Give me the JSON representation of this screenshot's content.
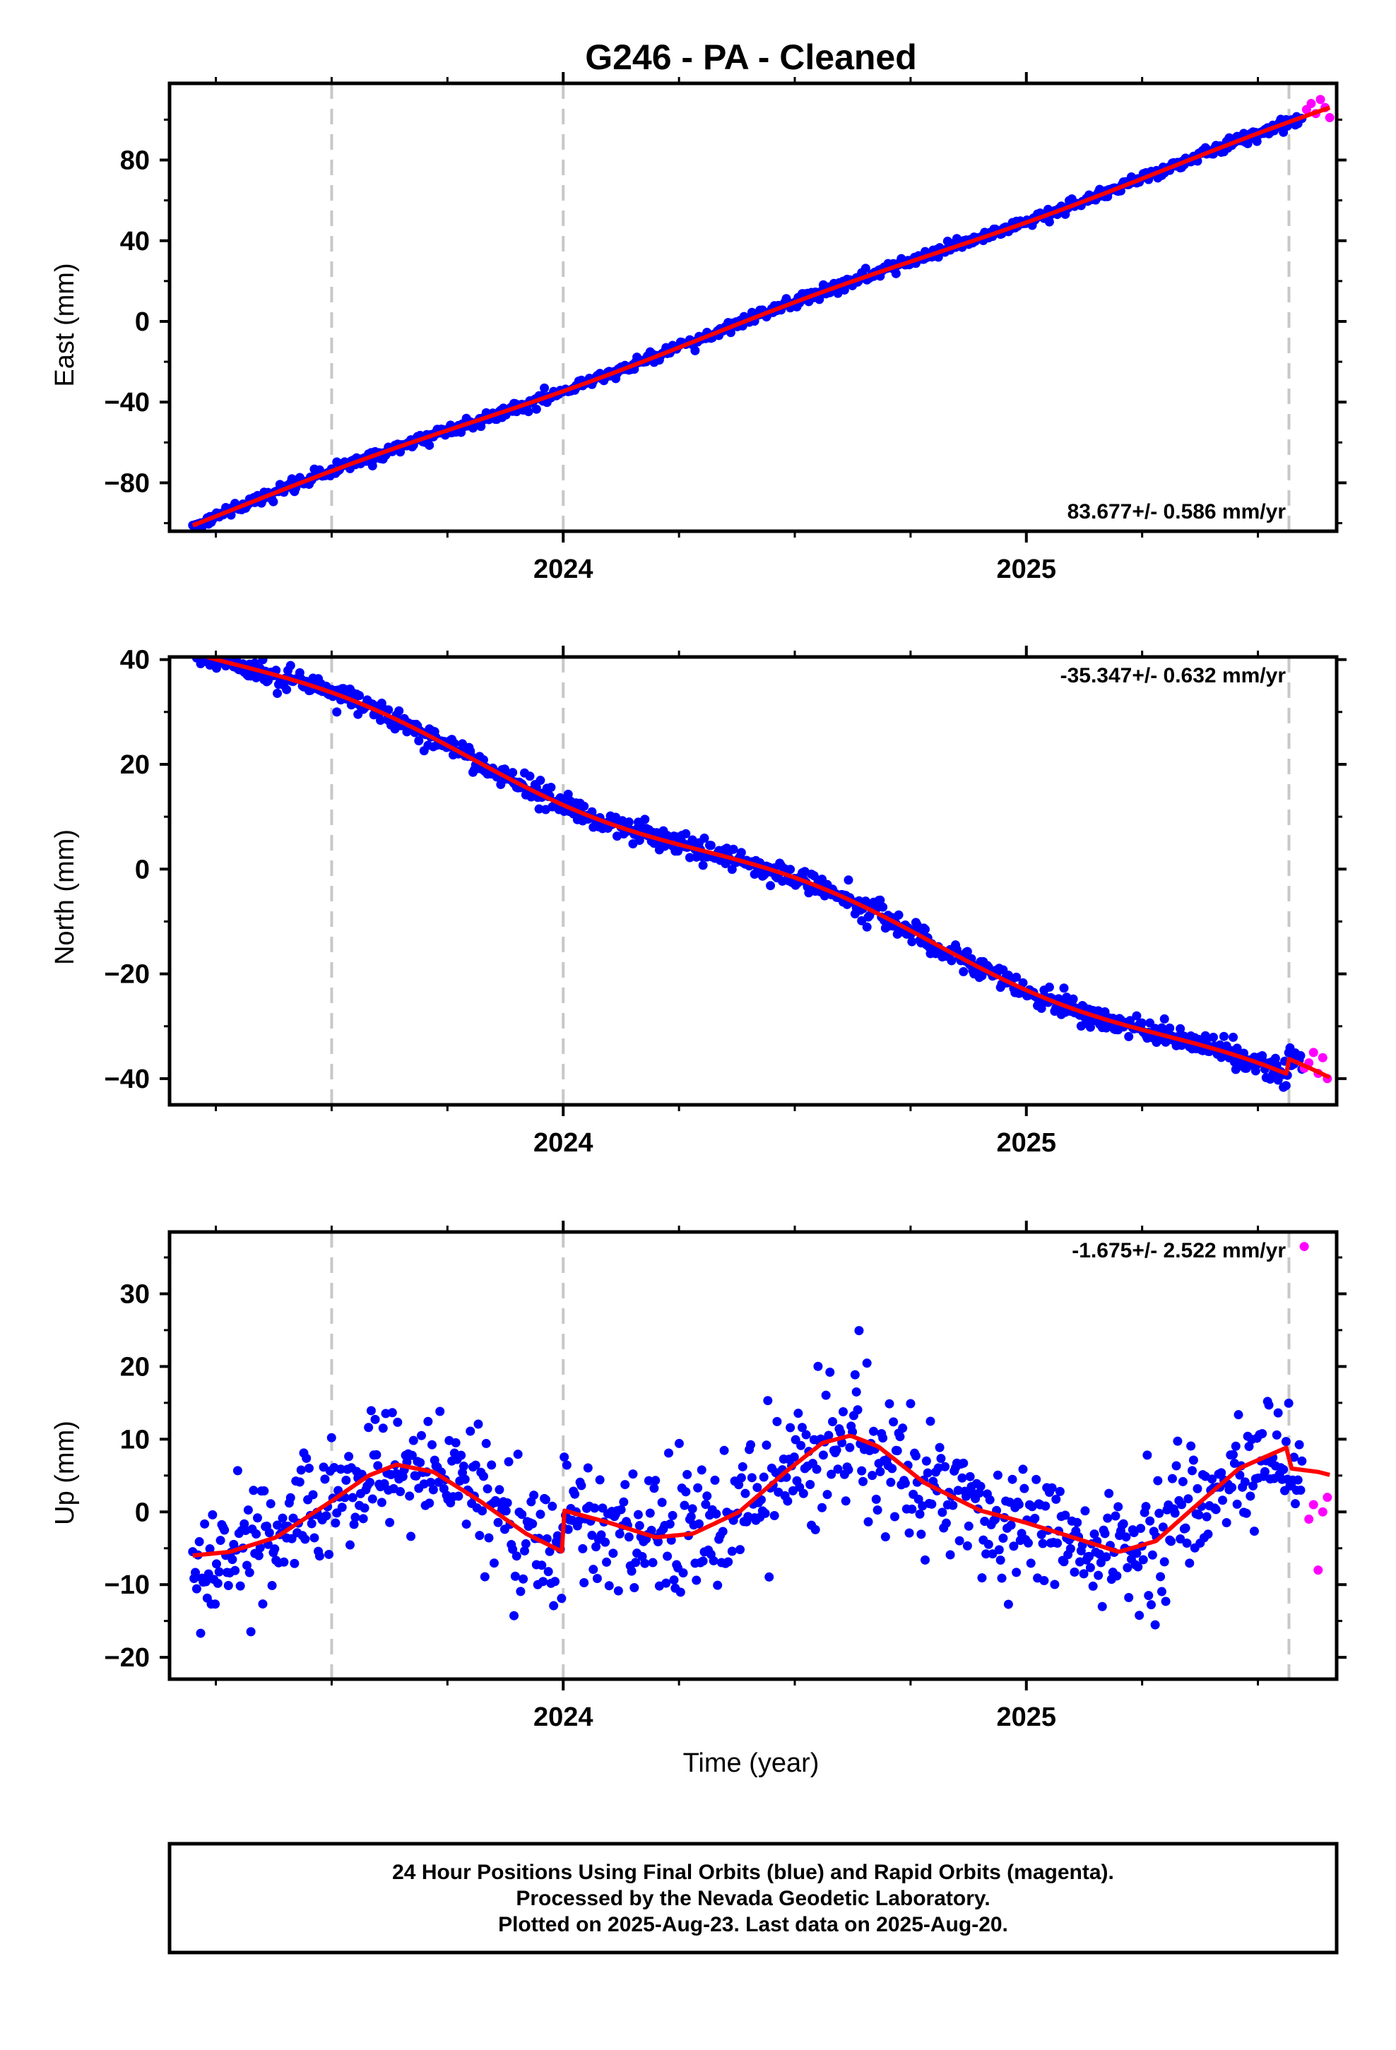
{
  "title": "G246  - PA - Cleaned",
  "colors": {
    "final_orbits": "#0000ff",
    "rapid_orbits": "#ff00ff",
    "model_fit": "#ff0000",
    "break_lines": "#c8c8c8",
    "frame": "#000000"
  },
  "footer": {
    "line1": "24 Hour Positions Using Final Orbits (blue) and Rapid Orbits (magenta).",
    "line2": "Processed by the Nevada Geodetic Laboratory.",
    "line3": "Plotted on 2025-Aug-23. Last data on 2025-Aug-20."
  },
  "chart_data": [
    {
      "type": "scatter",
      "name": "east",
      "ylabel": "East (mm)",
      "xlabel": "",
      "rate_label": "83.677+/- 0.586 mm/yr",
      "xlim": [
        2023.15,
        2025.67
      ],
      "ylim": [
        -104,
        118
      ],
      "yticks": [
        -80,
        -40,
        0,
        40,
        80
      ],
      "yticks_minor": [
        -100,
        -60,
        -20,
        20,
        60,
        100
      ],
      "xticks": [
        2024,
        2025
      ],
      "xticks_minor": [
        2023.25,
        2023.5,
        2023.75,
        2024.25,
        2024.5,
        2024.75,
        2025.25,
        2025.5
      ],
      "breaks": [
        2023.5,
        2024.0,
        2025.567
      ],
      "rate": 83.677,
      "ref_time": 2024.4,
      "offsets": [
        [
          2023.5,
          0
        ],
        [
          2024.0,
          0
        ],
        [
          2025.567,
          0
        ]
      ],
      "seasonal_amp": 1.2,
      "final_noise": 1.5,
      "rapid_points": [
        [
          2025.605,
          105
        ],
        [
          2025.615,
          108
        ],
        [
          2025.625,
          103
        ],
        [
          2025.635,
          110
        ],
        [
          2025.645,
          106
        ],
        [
          2025.655,
          101
        ]
      ],
      "grid": false
    },
    {
      "type": "scatter",
      "name": "north",
      "ylabel": "North (mm)",
      "xlabel": "",
      "rate_label": "-35.347+/- 0.632 mm/yr",
      "xlim": [
        2023.15,
        2025.67
      ],
      "ylim": [
        -45,
        40.5
      ],
      "yticks": [
        -40,
        -20,
        0,
        20,
        40
      ],
      "yticks_minor": [
        -30,
        -10,
        10,
        30
      ],
      "xticks": [
        2024,
        2025
      ],
      "xticks_minor": [
        2023.25,
        2023.5,
        2023.75,
        2024.25,
        2024.5,
        2024.75,
        2025.25,
        2025.5
      ],
      "breaks": [
        2023.5,
        2024.0,
        2025.567
      ],
      "rate": -35.347,
      "ref_time": 2024.4,
      "offsets": [
        [
          2023.5,
          0
        ],
        [
          2024.0,
          0
        ],
        [
          2025.567,
          3
        ]
      ],
      "seasonal_amp": 2.0,
      "final_noise": 1.1,
      "rapid_points": [
        [
          2025.6,
          -38
        ],
        [
          2025.61,
          -37
        ],
        [
          2025.62,
          -35
        ],
        [
          2025.63,
          -39
        ],
        [
          2025.64,
          -36
        ],
        [
          2025.65,
          -40
        ]
      ],
      "grid": false
    },
    {
      "type": "scatter",
      "name": "up",
      "ylabel": "Up (mm)",
      "xlabel": "Time (year)",
      "rate_label": "-1.675+/- 2.522 mm/yr",
      "xlim": [
        2023.15,
        2025.67
      ],
      "ylim": [
        -23,
        38.5
      ],
      "yticks": [
        -20,
        -10,
        0,
        10,
        20,
        30
      ],
      "yticks_minor": [
        -15,
        -5,
        5,
        15,
        25,
        35
      ],
      "xticks": [
        2024,
        2025
      ],
      "xticks_minor": [
        2023.25,
        2023.5,
        2023.75,
        2024.25,
        2024.5,
        2024.75,
        2025.25,
        2025.5
      ],
      "breaks": [
        2023.5,
        2024.0,
        2025.567
      ],
      "rate": -1.675,
      "ref_time": 2024.4,
      "offsets": [
        [
          2023.5,
          0
        ],
        [
          2024.0,
          5
        ],
        [
          2025.567,
          -3
        ]
      ],
      "fit_curve": [
        [
          2023.2,
          -6
        ],
        [
          2023.28,
          -5.5
        ],
        [
          2023.38,
          -3.5
        ],
        [
          2023.5,
          1.5
        ],
        [
          2023.58,
          5
        ],
        [
          2023.64,
          6.5
        ],
        [
          2023.72,
          5.5
        ],
        [
          2023.82,
          1.5
        ],
        [
          2023.92,
          -3
        ],
        [
          2023.999,
          -5.5
        ],
        [
          2024.001,
          0.2
        ],
        [
          2024.1,
          -1.5
        ],
        [
          2024.2,
          -3.5
        ],
        [
          2024.28,
          -3
        ],
        [
          2024.38,
          0
        ],
        [
          2024.48,
          5.5
        ],
        [
          2024.56,
          9.5
        ],
        [
          2024.62,
          10.5
        ],
        [
          2024.68,
          9
        ],
        [
          2024.78,
          4
        ],
        [
          2024.9,
          0.2
        ],
        [
          2025.0,
          -1.5
        ],
        [
          2025.1,
          -3.5
        ],
        [
          2025.2,
          -5.5
        ],
        [
          2025.28,
          -4
        ],
        [
          2025.36,
          0.5
        ],
        [
          2025.46,
          6
        ],
        [
          2025.56,
          8.8
        ],
        [
          2025.566,
          9
        ],
        [
          2025.568,
          6
        ],
        [
          2025.63,
          5.5
        ],
        [
          2025.66,
          5
        ]
      ],
      "final_noise": 4.2,
      "rapid_points": [
        [
          2025.6,
          36.5
        ],
        [
          2025.61,
          -1
        ],
        [
          2025.62,
          1
        ],
        [
          2025.63,
          -8
        ],
        [
          2025.64,
          0
        ],
        [
          2025.65,
          2
        ]
      ],
      "grid": false
    }
  ]
}
